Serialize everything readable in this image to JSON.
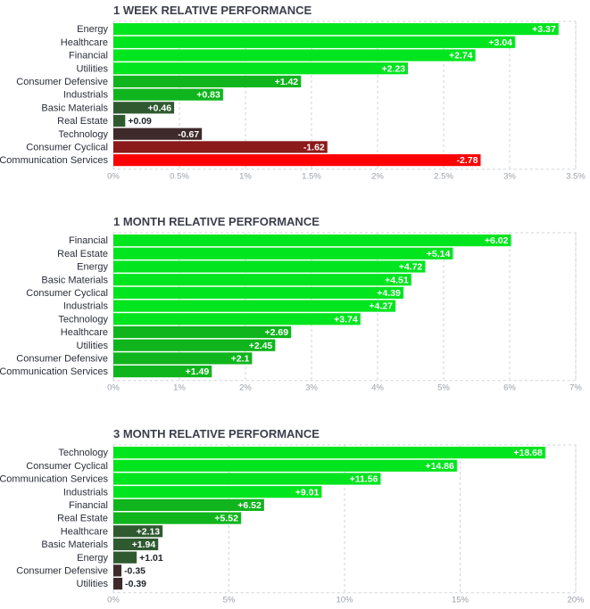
{
  "chart_data": [
    {
      "type": "bar",
      "orientation": "horizontal",
      "title": "1 WEEK RELATIVE PERFORMANCE",
      "categories": [
        "Energy",
        "Healthcare",
        "Financial",
        "Utilities",
        "Consumer Defensive",
        "Industrials",
        "Basic Materials",
        "Real Estate",
        "Technology",
        "Consumer Cyclical",
        "Communication Services"
      ],
      "values": [
        3.37,
        3.04,
        2.74,
        2.23,
        1.42,
        0.83,
        0.46,
        0.09,
        -0.67,
        -1.62,
        -2.78
      ],
      "value_labels": [
        "+3.37",
        "+3.04",
        "+2.74",
        "+2.23",
        "+1.42",
        "+0.83",
        "+0.46",
        "+0.09",
        "-0.67",
        "-1.62",
        "-2.78"
      ],
      "xlim": [
        0,
        3.5
      ],
      "ticks": [
        0,
        0.5,
        1,
        1.5,
        2,
        2.5,
        3,
        3.5
      ],
      "tick_labels": [
        "0%",
        "0.5%",
        "1%",
        "1.5%",
        "2%",
        "2.5%",
        "3%",
        "3.5%"
      ],
      "grid": true,
      "note_abs": true
    },
    {
      "type": "bar",
      "orientation": "horizontal",
      "title": "1 MONTH RELATIVE PERFORMANCE",
      "categories": [
        "Financial",
        "Real Estate",
        "Energy",
        "Basic Materials",
        "Consumer Cyclical",
        "Industrials",
        "Technology",
        "Healthcare",
        "Utilities",
        "Consumer Defensive",
        "Communication Services"
      ],
      "values": [
        6.02,
        5.14,
        4.72,
        4.51,
        4.39,
        4.27,
        3.74,
        2.69,
        2.45,
        2.1,
        1.49
      ],
      "value_labels": [
        "+6.02",
        "+5.14",
        "+4.72",
        "+4.51",
        "+4.39",
        "+4.27",
        "+3.74",
        "+2.69",
        "+2.45",
        "+2.1",
        "+1.49"
      ],
      "xlim": [
        0,
        7
      ],
      "ticks": [
        0,
        1,
        2,
        3,
        4,
        5,
        6,
        7
      ],
      "tick_labels": [
        "0%",
        "1%",
        "2%",
        "3%",
        "4%",
        "5%",
        "6%",
        "7%"
      ],
      "grid": true
    },
    {
      "type": "bar",
      "orientation": "horizontal",
      "title": "3 MONTH RELATIVE PERFORMANCE",
      "categories": [
        "Technology",
        "Consumer Cyclical",
        "Communication Services",
        "Industrials",
        "Financial",
        "Real Estate",
        "Healthcare",
        "Basic Materials",
        "Energy",
        "Consumer Defensive",
        "Utilities"
      ],
      "values": [
        18.68,
        14.86,
        11.56,
        9.01,
        6.52,
        5.52,
        2.13,
        1.94,
        1.01,
        -0.35,
        -0.39
      ],
      "value_labels": [
        "+18.68",
        "+14.86",
        "+11.56",
        "+9.01",
        "+6.52",
        "+5.52",
        "+2.13",
        "+1.94",
        "+1.01",
        "-0.35",
        "-0.39"
      ],
      "xlim": [
        0,
        20
      ],
      "ticks": [
        0,
        5,
        10,
        15,
        20
      ],
      "tick_labels": [
        "0%",
        "5%",
        "10%",
        "15%",
        "20%"
      ],
      "grid": true
    }
  ],
  "colors": {
    "positive_strong": "#00e51e",
    "positive_mid": "#10b51d",
    "positive_weak": "#2f5a30",
    "negative_weak": "#3e2a2a",
    "negative_mid": "#8b1a1a",
    "negative_strong": "#ff0000",
    "title": "#3b3f4a",
    "grid": "#d0d3d8",
    "tick": "#9aa0a8"
  }
}
